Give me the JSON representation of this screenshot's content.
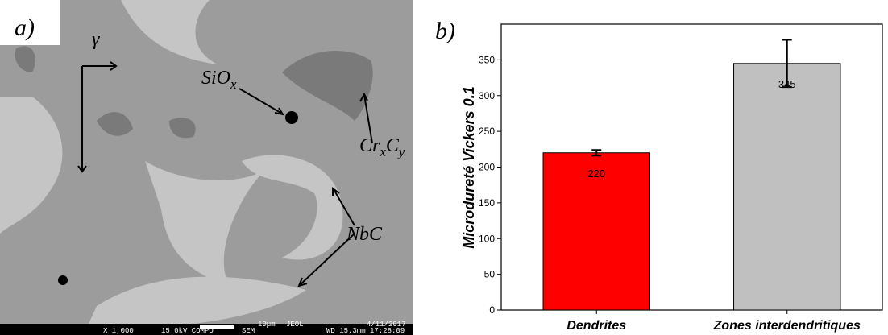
{
  "chart_data": {
    "type": "bar",
    "panel_label": "b)",
    "y_label": "Microdureté Vickers 0.1",
    "categories": [
      "Dendrites",
      "Zones interdendritiques"
    ],
    "values": [
      220,
      345
    ],
    "errors": [
      4,
      33
    ],
    "colors": [
      "#ff0000",
      "#c0c0c0"
    ],
    "ylim": [
      0,
      400
    ],
    "yticks": [
      0,
      50,
      100,
      150,
      200,
      250,
      300,
      350
    ]
  },
  "micrograph": {
    "panel_label": "a)",
    "labels": {
      "gamma": "γ",
      "sio": {
        "base": "SiO",
        "sub": "x"
      },
      "crc": {
        "b1": "Cr",
        "s1": "x",
        "b2": "C",
        "s2": "y"
      },
      "nbc": "NbC"
    },
    "info_bar": {
      "magnification": "X 1,000",
      "voltage": "15.0kV COMPO",
      "detector": "SEM",
      "scale": "10µm",
      "maker": "JEOL",
      "date": "4/11/2017",
      "wd": "WD 15.3mm 17:28:09"
    }
  }
}
